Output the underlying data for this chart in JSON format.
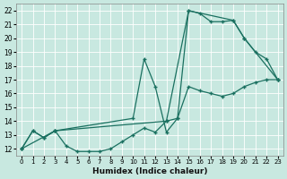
{
  "xlabel": "Humidex (Indice chaleur)",
  "xlim": [
    -0.5,
    23.5
  ],
  "ylim": [
    11.5,
    22.5
  ],
  "xticks": [
    0,
    1,
    2,
    3,
    4,
    5,
    6,
    7,
    8,
    9,
    10,
    11,
    12,
    13,
    14,
    15,
    16,
    17,
    18,
    19,
    20,
    21,
    22,
    23
  ],
  "yticks": [
    12,
    13,
    14,
    15,
    16,
    17,
    18,
    19,
    20,
    21,
    22
  ],
  "bg_color": "#c8e8e0",
  "line_color": "#1a7060",
  "grid_color": "#b0d8d0",
  "line1_x": [
    0,
    1,
    2,
    3,
    4,
    5,
    6,
    7,
    8,
    9,
    10,
    11,
    12,
    13,
    14,
    15,
    16,
    17,
    18,
    19,
    20,
    21,
    22,
    23
  ],
  "line1_y": [
    12,
    13.3,
    12.8,
    13.3,
    12.2,
    11.8,
    11.8,
    11.8,
    12.0,
    12.5,
    13.0,
    13.5,
    13.2,
    14.0,
    14.2,
    16.5,
    16.2,
    16.0,
    15.8,
    16.0,
    16.5,
    16.8,
    17.0,
    17.0
  ],
  "line2_x": [
    0,
    1,
    2,
    3,
    10,
    11,
    12,
    13,
    14,
    15,
    16,
    17,
    18,
    19,
    20,
    21,
    22,
    23
  ],
  "line2_y": [
    12,
    13.3,
    12.8,
    13.3,
    14.2,
    18.5,
    16.5,
    13.2,
    14.2,
    22.0,
    21.8,
    21.2,
    21.2,
    21.3,
    20.0,
    19.0,
    18.5,
    17.0
  ],
  "line3_x": [
    0,
    3,
    13,
    15,
    19,
    20,
    23
  ],
  "line3_y": [
    12,
    13.3,
    14.0,
    22.0,
    21.3,
    20.0,
    17.0
  ]
}
